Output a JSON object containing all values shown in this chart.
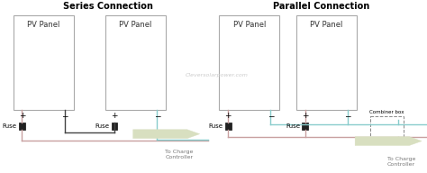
{
  "title_series": "Series Connection",
  "title_parallel": "Parallel Connection",
  "watermark": "Cleversolarpower.com",
  "bg_color": "#ffffff",
  "wire_red": "#c8a0a0",
  "wire_blue": "#a0c8d8",
  "wire_black": "#444444",
  "wire_cyan": "#88cccc",
  "fuse_color": "#222222",
  "arrow_color": "#d8dfc0",
  "arrow_text_color": "#777777",
  "arrow_text": "To Charge\nController",
  "combiner_box_text": "Combiner box",
  "panel_color": "#bbbbbb",
  "label_color": "#333333",
  "title_fontsize": 7,
  "panel_fontsize": 6,
  "label_fontsize": 6,
  "fuse_fontsize": 5
}
